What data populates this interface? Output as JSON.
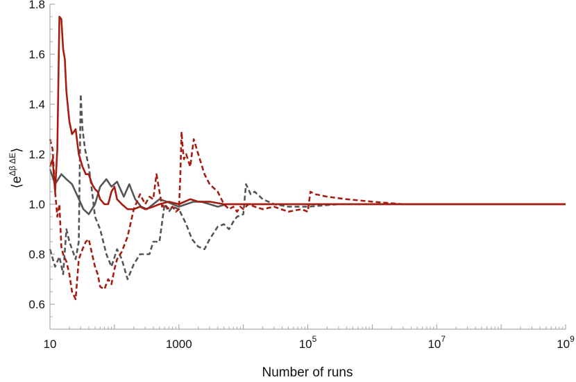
{
  "chart_data": {
    "type": "line",
    "title": "",
    "xlabel": "Number of runs",
    "ylabel": "⟨e^{Δβ ΔE}⟩",
    "ylabel_parts": {
      "open": "⟨",
      "base": "e",
      "exponent": "Δβ ΔE",
      "close": "⟩"
    },
    "x_scale": "log",
    "xlim": [
      10,
      1000000000
    ],
    "ylim": [
      0.5,
      1.8
    ],
    "grid": false,
    "legend": "none",
    "x_ticks": [
      {
        "value": 10,
        "label": "10"
      },
      {
        "value": 1000,
        "label": "1000"
      },
      {
        "value": 100000,
        "label": "10",
        "sup": "5"
      },
      {
        "value": 10000000,
        "label": "10",
        "sup": "7"
      },
      {
        "value": 1000000000,
        "label": "10",
        "sup": "9"
      }
    ],
    "y_ticks": [
      {
        "value": 0.6,
        "label": "0.6"
      },
      {
        "value": 0.8,
        "label": "0.8"
      },
      {
        "value": 1.0,
        "label": "1.0"
      },
      {
        "value": 1.2,
        "label": "1.2"
      },
      {
        "value": 1.4,
        "label": "1.4"
      },
      {
        "value": 1.6,
        "label": "1.6"
      },
      {
        "value": 1.8,
        "label": "1.8"
      }
    ],
    "series": [
      {
        "color": "#555555",
        "style": "solid",
        "x": [
          10,
          12,
          15,
          18,
          22,
          27,
          33,
          40,
          50,
          60,
          75,
          90,
          110,
          140,
          170,
          210,
          260,
          320,
          400,
          500,
          650,
          800,
          1000,
          1300,
          1700,
          2200,
          3000,
          4000,
          5500,
          7500,
          10000,
          20000,
          50000,
          100000,
          1000000,
          10000000,
          100000000,
          1000000000
        ],
        "y": [
          1.14,
          1.08,
          1.12,
          1.1,
          1.08,
          1.03,
          0.98,
          0.96,
          1.0,
          1.07,
          1.1,
          1.07,
          1.09,
          1.03,
          1.08,
          1.02,
          0.99,
          0.98,
          1.0,
          1.02,
          1.01,
          1.0,
          0.99,
          1.0,
          1.01,
          1.01,
          1.0,
          0.99,
          1.0,
          1.0,
          1.0,
          1.0,
          1.0,
          1.0,
          1.0,
          1.0,
          1.0,
          1.0
        ]
      },
      {
        "color": "#555555",
        "style": "dashed",
        "x": [
          10,
          12,
          14,
          16,
          18,
          20,
          22,
          25,
          28,
          30,
          32,
          35,
          40,
          45,
          50,
          60,
          75,
          90,
          110,
          130,
          160,
          200,
          250,
          300,
          350,
          400,
          500,
          600,
          700,
          800,
          1000,
          1300,
          1600,
          2000,
          2500,
          3000,
          4000,
          5000,
          6000,
          7000,
          8000,
          10000,
          11000,
          13000,
          15000,
          20000,
          30000,
          50000,
          100000,
          300000,
          1000000,
          10000000,
          100000000,
          1000000000
        ],
        "y": [
          0.82,
          0.75,
          0.79,
          0.72,
          0.9,
          0.85,
          0.82,
          0.78,
          0.85,
          1.44,
          1.3,
          1.22,
          1.15,
          1.05,
          0.95,
          0.9,
          0.8,
          0.75,
          0.82,
          0.78,
          0.7,
          0.76,
          0.8,
          0.8,
          0.8,
          0.85,
          0.85,
          1.0,
          0.97,
          0.99,
          0.98,
          0.92,
          0.86,
          0.83,
          0.82,
          0.86,
          0.91,
          0.92,
          0.9,
          0.93,
          0.95,
          0.96,
          1.08,
          1.04,
          1.05,
          1.02,
          1.0,
          0.99,
          0.99,
          1.0,
          1.0,
          1.0,
          1.0,
          1.0
        ]
      },
      {
        "color": "#a61c10",
        "style": "solid",
        "x": [
          10,
          11,
          12,
          13,
          14,
          15,
          16,
          17,
          18,
          20,
          22,
          25,
          28,
          32,
          36,
          40,
          45,
          50,
          55,
          60,
          70,
          80,
          90,
          100,
          110,
          130,
          160,
          200,
          250,
          300,
          400,
          500,
          700,
          1000,
          1500,
          2000,
          3000,
          5000,
          10000,
          30000,
          100000,
          1000000,
          10000000,
          100000000,
          1000000000
        ],
        "y": [
          1.15,
          1.18,
          1.05,
          1.22,
          1.75,
          1.74,
          1.62,
          1.58,
          1.45,
          1.33,
          1.28,
          1.3,
          1.2,
          1.15,
          1.12,
          1.12,
          1.08,
          1.06,
          1.05,
          1.02,
          1.0,
          1.0,
          1.05,
          1.07,
          1.02,
          1.0,
          0.98,
          0.98,
          0.99,
          0.98,
          0.99,
          1.0,
          1.01,
          1.0,
          1.02,
          1.01,
          1.01,
          1.0,
          1.0,
          1.0,
          1.0,
          1.0,
          1.0,
          1.0,
          1.0
        ]
      },
      {
        "color": "#a61c10",
        "style": "dashed",
        "x": [
          10,
          11,
          12,
          13,
          14,
          15,
          16,
          18,
          20,
          22,
          25,
          28,
          32,
          36,
          40,
          45,
          50,
          55,
          60,
          70,
          80,
          90,
          100,
          110,
          130,
          160,
          200,
          250,
          300,
          350,
          400,
          450,
          500,
          550,
          600,
          700,
          800,
          900,
          1000,
          1050,
          1100,
          1150,
          1200,
          1300,
          1500,
          1700,
          2000,
          2300,
          2500,
          3000,
          4000,
          5000,
          6000,
          7000,
          8000,
          9000,
          10000,
          12000,
          15000,
          20000,
          30000,
          50000,
          80000,
          100000,
          110000,
          130000,
          200000,
          400000,
          1000000,
          3000000,
          10000000,
          100000000,
          1000000000
        ],
        "y": [
          1.26,
          1.22,
          1.05,
          0.95,
          1.0,
          0.83,
          0.8,
          0.77,
          0.72,
          0.65,
          0.62,
          0.78,
          0.82,
          0.85,
          0.86,
          0.8,
          0.75,
          0.72,
          0.67,
          0.66,
          0.7,
          0.68,
          0.74,
          0.78,
          0.81,
          0.87,
          0.98,
          1.04,
          1.0,
          1.03,
          1.02,
          1.12,
          1.05,
          0.99,
          1.0,
          0.98,
          0.99,
          0.97,
          0.98,
          1.1,
          1.29,
          1.22,
          1.18,
          1.2,
          1.15,
          1.26,
          1.2,
          1.15,
          1.12,
          1.08,
          1.05,
          1.0,
          0.98,
          0.99,
          0.97,
          0.99,
          0.98,
          1.0,
          0.99,
          0.98,
          0.99,
          0.97,
          0.98,
          0.97,
          1.05,
          1.04,
          1.03,
          1.02,
          1.01,
          1.0,
          1.0,
          1.0,
          1.0
        ]
      }
    ]
  }
}
